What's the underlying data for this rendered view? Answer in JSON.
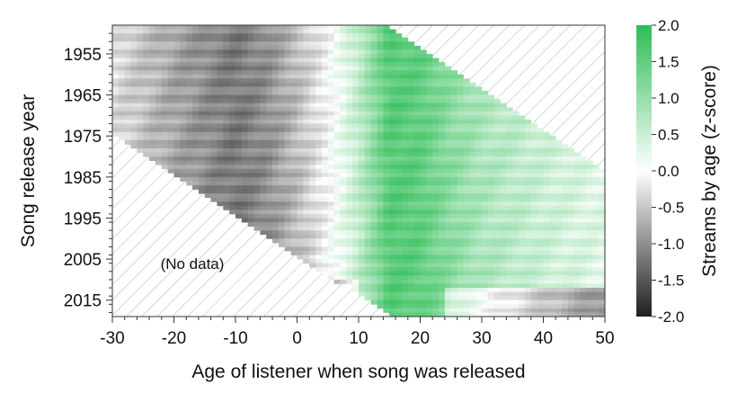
{
  "chart_data": {
    "type": "heatmap",
    "title": "",
    "xlabel": "Age of listener when song was released",
    "ylabel": "Song release year",
    "xlim": [
      -30,
      50
    ],
    "ylim": [
      1948,
      2019
    ],
    "x_ticks": [
      "-30",
      "-20",
      "-10",
      "0",
      "10",
      "20",
      "30",
      "40",
      "50"
    ],
    "y_ticks": [
      "1955",
      "1965",
      "1975",
      "1985",
      "1995",
      "2005",
      "2015"
    ],
    "y_tick_values": [
      1955,
      1965,
      1975,
      1985,
      1995,
      2005,
      2015
    ],
    "colorbar": {
      "label": "Streams by age (z-score)",
      "range": [
        -2.0,
        2.0
      ],
      "ticks": [
        "2.0",
        "1.5",
        "1.0",
        "0.5",
        "0.0",
        "-0.5",
        "-1.0",
        "-1.5",
        "-2.0"
      ],
      "low_color": "#1f1f1f",
      "mid_color": "#ffffff",
      "high_color": "#2dbd55"
    },
    "annotation": "(No data)",
    "data_bounds": {
      "lower_left_boundary": [
        [
          -30,
          1975
        ],
        [
          7,
          2011
        ]
      ],
      "upper_right_boundary": [
        [
          14,
          1948
        ],
        [
          50,
          1984
        ]
      ]
    },
    "profile_by_age": {
      "ages": [
        -30,
        -20,
        -10,
        -5,
        0,
        5,
        10,
        15,
        20,
        25,
        30,
        40,
        50
      ],
      "z_score": [
        -0.3,
        -0.8,
        -1.2,
        -1.0,
        -0.6,
        -0.1,
        0.6,
        1.6,
        1.5,
        1.1,
        0.8,
        0.5,
        0.3
      ]
    }
  }
}
